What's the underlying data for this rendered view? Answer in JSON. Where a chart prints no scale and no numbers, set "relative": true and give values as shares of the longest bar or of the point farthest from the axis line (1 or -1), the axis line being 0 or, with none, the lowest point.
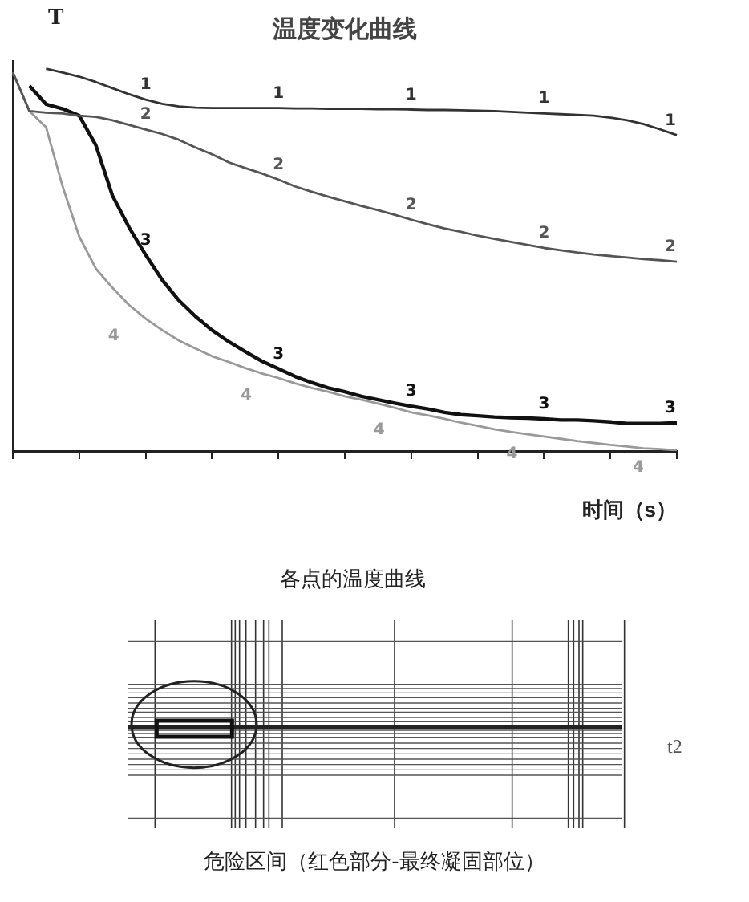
{
  "chart_data": {
    "type": "line",
    "title": "温度变化曲线",
    "ylabel": "T",
    "xlabel": "时间（s）",
    "relative": true,
    "grid": false,
    "legend": false,
    "marker": "none",
    "line_style": "solid",
    "categories": [
      null,
      null,
      null,
      null,
      null,
      null,
      null,
      null,
      null,
      null,
      null,
      null,
      null,
      null,
      null,
      null,
      null,
      null,
      null,
      null,
      null,
      null,
      null,
      null,
      null,
      null,
      null,
      null,
      null,
      null,
      null,
      null,
      null,
      null,
      null,
      null,
      null,
      null,
      null,
      null,
      null
    ],
    "series": [
      {
        "name": "1",
        "color": "#333333",
        "values": [
          null,
          null,
          1.0,
          0.99,
          0.979,
          0.965,
          0.949,
          0.933,
          0.919,
          0.908,
          0.901,
          0.898,
          0.897,
          0.897,
          0.897,
          0.897,
          0.897,
          0.896,
          0.896,
          0.895,
          0.895,
          0.895,
          0.894,
          0.894,
          0.893,
          0.892,
          0.892,
          0.891,
          0.89,
          0.889,
          0.887,
          0.885,
          0.883,
          0.881,
          0.879,
          0.877,
          0.872,
          0.865,
          0.855,
          0.841,
          0.826
        ]
      },
      {
        "name": "2",
        "color": "#555555",
        "values": [
          0.99,
          0.889,
          0.885,
          0.883,
          0.877,
          0.874,
          0.865,
          0.853,
          0.841,
          0.829,
          0.814,
          0.794,
          0.776,
          0.755,
          0.74,
          0.726,
          0.71,
          0.692,
          0.678,
          0.665,
          0.653,
          0.641,
          0.63,
          0.618,
          0.605,
          0.593,
          0.582,
          0.573,
          0.563,
          0.555,
          0.547,
          0.539,
          0.531,
          0.525,
          0.519,
          0.514,
          0.51,
          0.506,
          0.502,
          0.499,
          0.495
        ]
      },
      {
        "name": "3",
        "color": "#111111",
        "values": [
          null,
          0.955,
          0.907,
          0.895,
          0.877,
          0.8,
          0.668,
          0.585,
          0.513,
          0.447,
          0.394,
          0.352,
          0.316,
          0.286,
          0.26,
          0.235,
          0.215,
          0.195,
          0.179,
          0.165,
          0.155,
          0.143,
          0.134,
          0.125,
          0.117,
          0.11,
          0.101,
          0.095,
          0.092,
          0.089,
          0.087,
          0.086,
          0.084,
          0.081,
          0.081,
          0.079,
          0.076,
          0.072,
          0.072,
          0.072,
          0.074
        ]
      },
      {
        "name": "4",
        "color": "#999999",
        "values": [
          0.99,
          0.889,
          0.847,
          0.692,
          0.561,
          0.477,
          0.427,
          0.382,
          0.346,
          0.316,
          0.289,
          0.268,
          0.248,
          0.233,
          0.217,
          0.203,
          0.191,
          0.177,
          0.165,
          0.155,
          0.143,
          0.134,
          0.124,
          0.113,
          0.101,
          0.093,
          0.084,
          0.074,
          0.066,
          0.057,
          0.05,
          0.044,
          0.038,
          0.032,
          0.026,
          0.021,
          0.016,
          0.012,
          0.007,
          0.005,
          0.002
        ]
      }
    ],
    "annotations": [
      "各点的温度曲线",
      "危险区间（红色部分-最终凝固部位）",
      "t2"
    ]
  }
}
